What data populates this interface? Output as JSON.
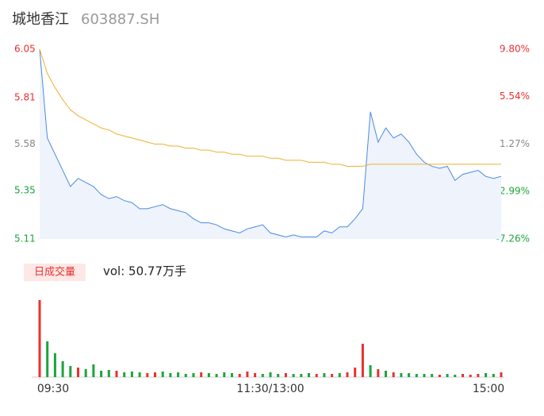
{
  "chart_data": [
    {
      "type": "line",
      "title": "城地香江",
      "subtitle": "603887.SH",
      "x": [
        0,
        4,
        8,
        12,
        16,
        20,
        24,
        28,
        32,
        36,
        40,
        44,
        48,
        52,
        56,
        60,
        64,
        68,
        72,
        76,
        80,
        84,
        88,
        92,
        96,
        100,
        104,
        108,
        112,
        116,
        120,
        124,
        128,
        132,
        136,
        140,
        144,
        148,
        152,
        156,
        160,
        164,
        168,
        172,
        176,
        180,
        184,
        188,
        192,
        196,
        200,
        204,
        208,
        212,
        216,
        220,
        224,
        228,
        232,
        236,
        240
      ],
      "xlim": [
        0,
        240
      ],
      "xticks": [
        {
          "value": 0,
          "label": "09:30"
        },
        {
          "value": 120,
          "label": "11:30/13:00"
        },
        {
          "value": 240,
          "label": "15:00"
        }
      ],
      "series": [
        {
          "name": "price",
          "color": "#4a8be0",
          "values": [
            6.05,
            5.61,
            5.53,
            5.45,
            5.37,
            5.41,
            5.39,
            5.37,
            5.33,
            5.31,
            5.32,
            5.3,
            5.29,
            5.26,
            5.26,
            5.27,
            5.28,
            5.26,
            5.25,
            5.24,
            5.21,
            5.19,
            5.19,
            5.18,
            5.16,
            5.15,
            5.14,
            5.16,
            5.17,
            5.18,
            5.14,
            5.13,
            5.12,
            5.13,
            5.12,
            5.12,
            5.12,
            5.15,
            5.14,
            5.17,
            5.17,
            5.21,
            5.26,
            5.74,
            5.59,
            5.66,
            5.61,
            5.63,
            5.59,
            5.53,
            5.49,
            5.47,
            5.46,
            5.47,
            5.4,
            5.43,
            5.44,
            5.45,
            5.42,
            5.41,
            5.42
          ]
        },
        {
          "name": "average",
          "color": "#f0b030",
          "values": [
            6.05,
            5.93,
            5.86,
            5.8,
            5.75,
            5.72,
            5.7,
            5.68,
            5.66,
            5.65,
            5.63,
            5.62,
            5.61,
            5.6,
            5.59,
            5.58,
            5.58,
            5.57,
            5.57,
            5.56,
            5.56,
            5.55,
            5.55,
            5.54,
            5.54,
            5.53,
            5.53,
            5.52,
            5.52,
            5.52,
            5.51,
            5.51,
            5.5,
            5.5,
            5.5,
            5.49,
            5.49,
            5.49,
            5.48,
            5.48,
            5.47,
            5.47,
            5.47,
            5.48,
            5.48,
            5.48,
            5.48,
            5.48,
            5.48,
            5.48,
            5.48,
            5.48,
            5.48,
            5.48,
            5.48,
            5.48,
            5.48,
            5.48,
            5.48,
            5.48,
            5.48
          ]
        }
      ],
      "ylim": [
        5.11,
        6.05
      ],
      "yticks": [
        6.05,
        5.81,
        5.58,
        5.35,
        5.11
      ],
      "y2lim": [
        -7.26,
        9.8
      ],
      "y2ticks": [
        {
          "value": 9.8,
          "label": "9.80%"
        },
        {
          "value": 5.54,
          "label": "5.54%"
        },
        {
          "value": 1.27,
          "label": "1.27%"
        },
        {
          "value": -2.99,
          "label": "-2.99%"
        },
        {
          "value": -7.26,
          "label": "-7.26%"
        }
      ],
      "tick_colors": [
        "#e8312f",
        "#e8312f",
        "#888888",
        "#1aa53a",
        "#1aa53a"
      ]
    },
    {
      "type": "bar",
      "title": "日成交量",
      "subtitle": "vol: 50.77万手",
      "values": [
        97,
        45,
        30,
        20,
        14,
        12,
        10,
        16,
        8,
        9,
        8,
        6,
        7,
        6,
        5,
        6,
        7,
        5,
        6,
        4,
        5,
        6,
        5,
        4,
        6,
        5,
        4,
        7,
        5,
        4,
        6,
        4,
        5,
        4,
        4,
        5,
        4,
        5,
        4,
        5,
        6,
        12,
        42,
        15,
        10,
        8,
        6,
        5,
        5,
        4,
        4,
        4,
        3,
        4,
        3,
        4,
        3,
        4,
        5,
        4,
        6
      ],
      "ylim": [
        0,
        100
      ],
      "colors": [
        "#e8312f",
        "#1aa53a",
        "#1aa53a",
        "#1aa53a",
        "#1aa53a",
        "#e8312f",
        "#1aa53a",
        "#1aa53a",
        "#1aa53a",
        "#1aa53a",
        "#e8312f",
        "#1aa53a",
        "#1aa53a",
        "#1aa53a",
        "#e8312f",
        "#e8312f",
        "#1aa53a",
        "#1aa53a",
        "#1aa53a",
        "#1aa53a",
        "#1aa53a",
        "#e8312f",
        "#1aa53a",
        "#1aa53a",
        "#1aa53a",
        "#1aa53a",
        "#e8312f",
        "#e8312f",
        "#e8312f",
        "#1aa53a",
        "#1aa53a",
        "#1aa53a",
        "#e8312f",
        "#1aa53a",
        "#1aa53a",
        "#1aa53a",
        "#e8312f",
        "#1aa53a",
        "#e8312f",
        "#1aa53a",
        "#e8312f",
        "#e8312f",
        "#e8312f",
        "#1aa53a",
        "#e8312f",
        "#1aa53a",
        "#e8312f",
        "#1aa53a",
        "#1aa53a",
        "#1aa53a",
        "#1aa53a",
        "#1aa53a",
        "#e8312f",
        "#1aa53a",
        "#1aa53a",
        "#e8312f",
        "#e8312f",
        "#e8312f",
        "#1aa53a",
        "#1aa53a",
        "#e8312f"
      ]
    }
  ]
}
